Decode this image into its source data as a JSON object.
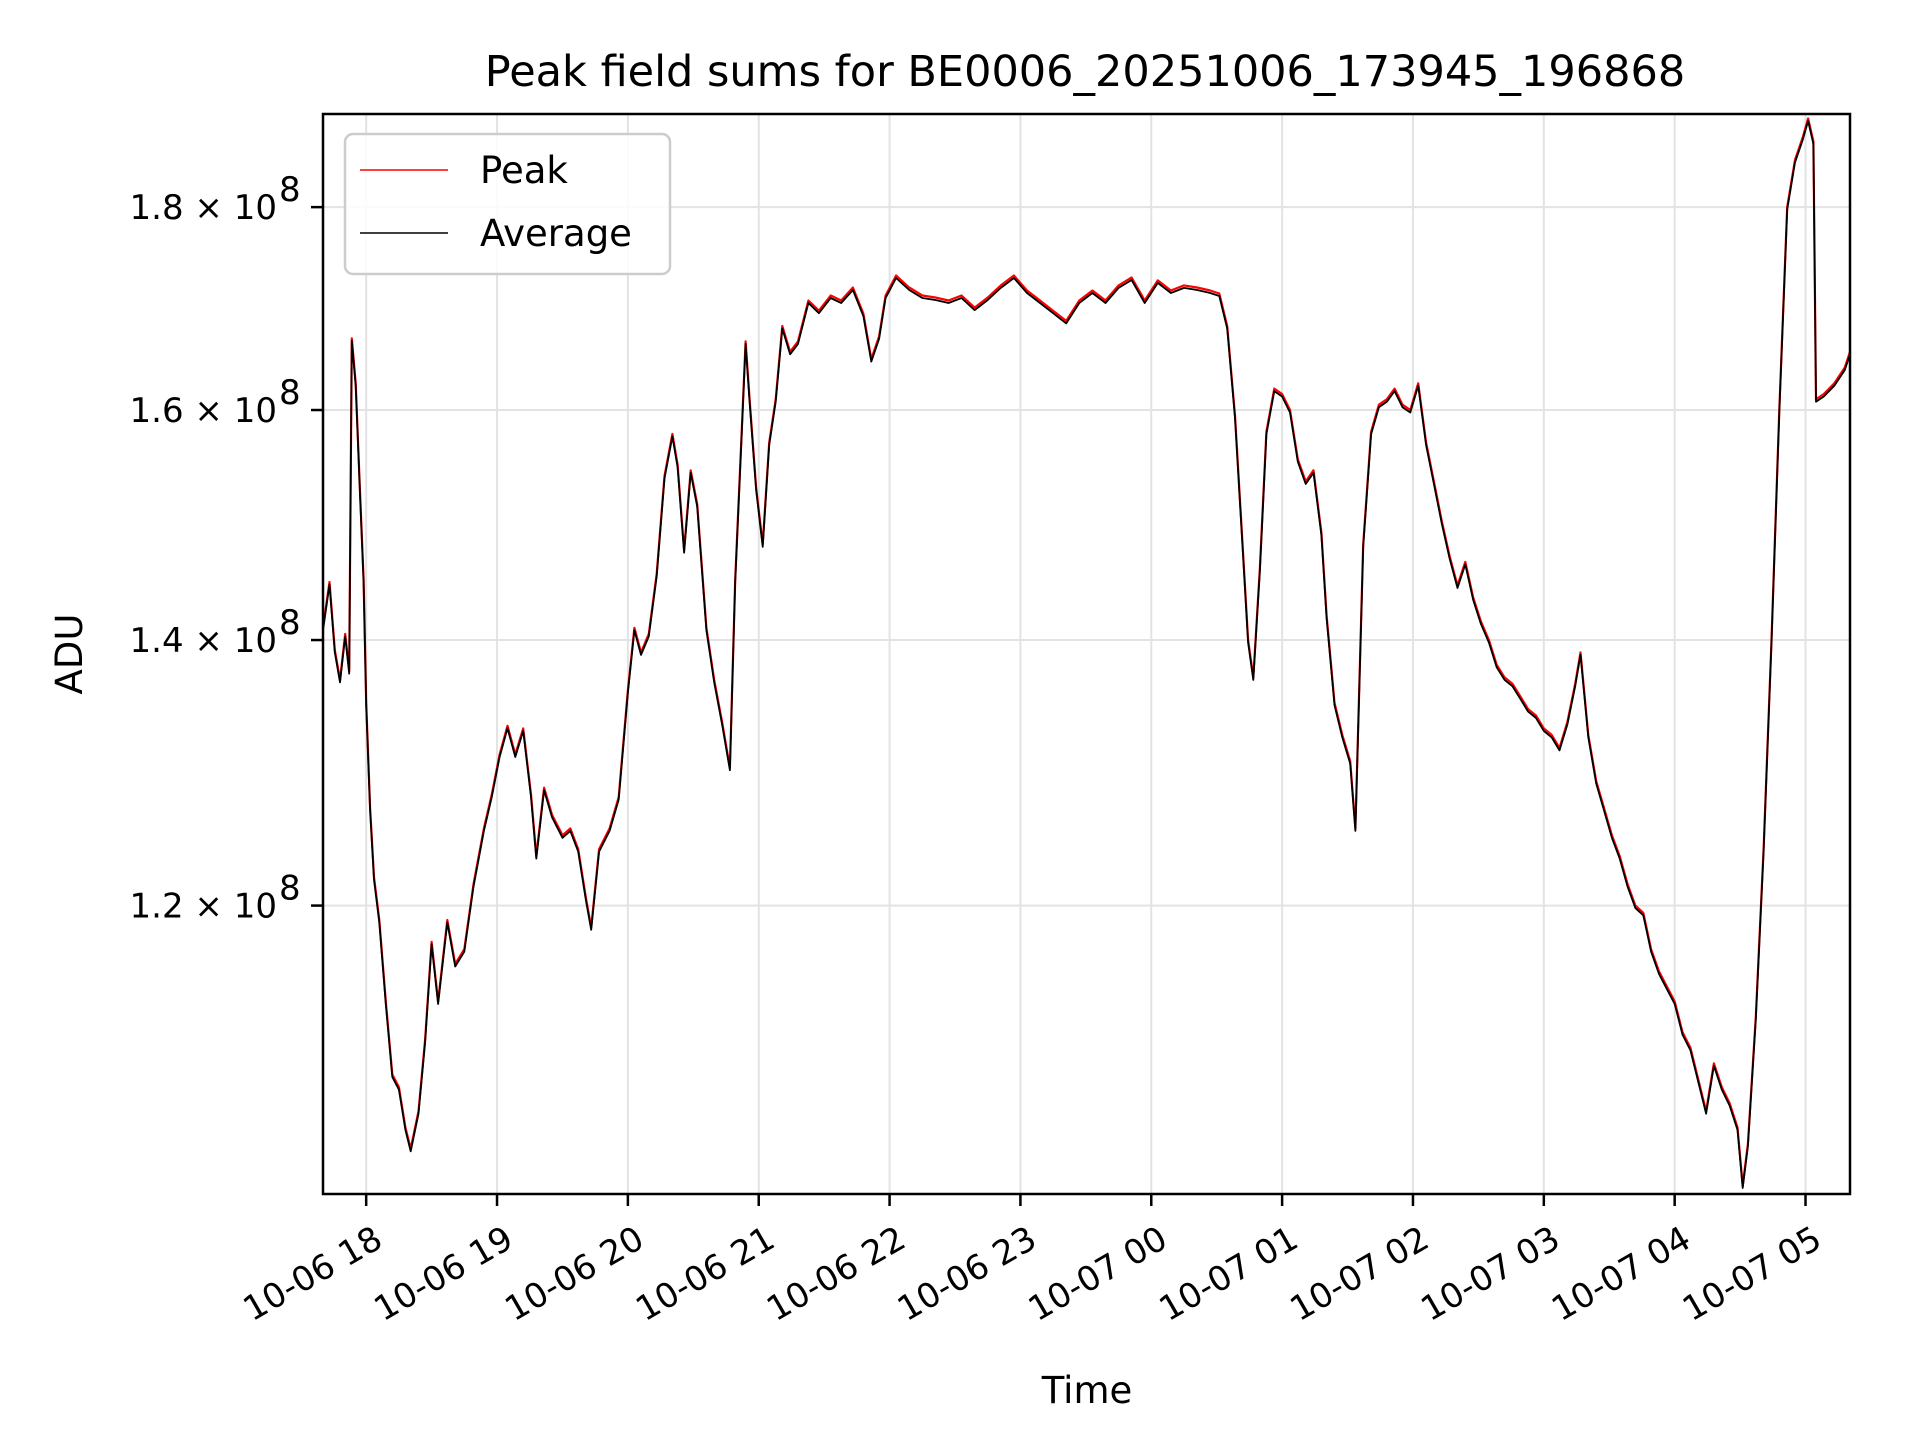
{
  "chart_data": {
    "type": "line",
    "title": "Peak field sums for BE0006_20251006_173945_196868",
    "xlabel": "Time",
    "ylabel": "ADU",
    "x_range_hours": [
      17.67,
      29.34
    ],
    "y_range": [
      101500000,
      190000000
    ],
    "y_scale": "log",
    "grid": true,
    "legend": "upper-left",
    "x_ticks": [
      {
        "hour": 18,
        "label": "10-06 18"
      },
      {
        "hour": 19,
        "label": "10-06 19"
      },
      {
        "hour": 20,
        "label": "10-06 20"
      },
      {
        "hour": 21,
        "label": "10-06 21"
      },
      {
        "hour": 22,
        "label": "10-06 22"
      },
      {
        "hour": 23,
        "label": "10-06 23"
      },
      {
        "hour": 24,
        "label": "10-07 00"
      },
      {
        "hour": 25,
        "label": "10-07 01"
      },
      {
        "hour": 26,
        "label": "10-07 02"
      },
      {
        "hour": 27,
        "label": "10-07 03"
      },
      {
        "hour": 28,
        "label": "10-07 04"
      },
      {
        "hour": 29,
        "label": "10-07 05"
      }
    ],
    "y_ticks": [
      {
        "value": 120000000,
        "label": "1.2 × 10",
        "exp": "8"
      },
      {
        "value": 140000000,
        "label": "1.4 × 10",
        "exp": "8"
      },
      {
        "value": 160000000,
        "label": "1.6 × 10",
        "exp": "8"
      },
      {
        "value": 180000000,
        "label": "1.8 × 10",
        "exp": "8"
      }
    ],
    "series": [
      {
        "name": "Peak",
        "color": "#ff0000",
        "points": [
          [
            17.67,
            141000000
          ],
          [
            17.72,
            144800000
          ],
          [
            17.76,
            139200000
          ],
          [
            17.8,
            136800000
          ],
          [
            17.84,
            140500000
          ],
          [
            17.87,
            137500000
          ],
          [
            17.89,
            166800000
          ],
          [
            17.92,
            162500000
          ],
          [
            17.95,
            153500000
          ],
          [
            17.98,
            145000000
          ],
          [
            18.0,
            135000000
          ],
          [
            18.03,
            127000000
          ],
          [
            18.06,
            122000000
          ],
          [
            18.1,
            119000000
          ],
          [
            18.15,
            113500000
          ],
          [
            18.2,
            108800000
          ],
          [
            18.25,
            108000000
          ],
          [
            18.3,
            105500000
          ],
          [
            18.34,
            104200000
          ],
          [
            18.4,
            106500000
          ],
          [
            18.45,
            111000000
          ],
          [
            18.5,
            117500000
          ],
          [
            18.55,
            113500000
          ],
          [
            18.62,
            119000000
          ],
          [
            18.68,
            116000000
          ],
          [
            18.75,
            117000000
          ],
          [
            18.82,
            121500000
          ],
          [
            18.9,
            125500000
          ],
          [
            18.96,
            128000000
          ],
          [
            19.02,
            131000000
          ],
          [
            19.08,
            133200000
          ],
          [
            19.14,
            131000000
          ],
          [
            19.2,
            133000000
          ],
          [
            19.26,
            128000000
          ],
          [
            19.3,
            123500000
          ],
          [
            19.36,
            128500000
          ],
          [
            19.42,
            126500000
          ],
          [
            19.5,
            125000000
          ],
          [
            19.56,
            125500000
          ],
          [
            19.62,
            124000000
          ],
          [
            19.68,
            120500000
          ],
          [
            19.72,
            118500000
          ],
          [
            19.78,
            124000000
          ],
          [
            19.86,
            125500000
          ],
          [
            19.93,
            127800000
          ],
          [
            20.0,
            136000000
          ],
          [
            20.05,
            141000000
          ],
          [
            20.1,
            139000000
          ],
          [
            20.16,
            140500000
          ],
          [
            20.22,
            145500000
          ],
          [
            20.28,
            154000000
          ],
          [
            20.34,
            157800000
          ],
          [
            20.38,
            155000000
          ],
          [
            20.43,
            147500000
          ],
          [
            20.48,
            154500000
          ],
          [
            20.53,
            151500000
          ],
          [
            20.6,
            141000000
          ],
          [
            20.66,
            136800000
          ],
          [
            20.72,
            133500000
          ],
          [
            20.78,
            130000000
          ],
          [
            20.82,
            145000000
          ],
          [
            20.87,
            158000000
          ],
          [
            20.9,
            166500000
          ],
          [
            20.93,
            161000000
          ],
          [
            20.98,
            153000000
          ],
          [
            21.03,
            148000000
          ],
          [
            21.08,
            157000000
          ],
          [
            21.13,
            161000000
          ],
          [
            21.18,
            168000000
          ],
          [
            21.24,
            165500000
          ],
          [
            21.3,
            166500000
          ],
          [
            21.38,
            170500000
          ],
          [
            21.46,
            169500000
          ],
          [
            21.55,
            171000000
          ],
          [
            21.63,
            170500000
          ],
          [
            21.72,
            171800000
          ],
          [
            21.8,
            169200000
          ],
          [
            21.86,
            164800000
          ],
          [
            21.92,
            167000000
          ],
          [
            21.97,
            171000000
          ],
          [
            22.05,
            173000000
          ],
          [
            22.15,
            171800000
          ],
          [
            22.25,
            171000000
          ],
          [
            22.35,
            170800000
          ],
          [
            22.45,
            170500000
          ],
          [
            22.55,
            171000000
          ],
          [
            22.65,
            169800000
          ],
          [
            22.75,
            170800000
          ],
          [
            22.85,
            172000000
          ],
          [
            22.95,
            173000000
          ],
          [
            23.05,
            171500000
          ],
          [
            23.15,
            170500000
          ],
          [
            23.25,
            169500000
          ],
          [
            23.35,
            168500000
          ],
          [
            23.45,
            170500000
          ],
          [
            23.55,
            171500000
          ],
          [
            23.65,
            170500000
          ],
          [
            23.75,
            172000000
          ],
          [
            23.85,
            172800000
          ],
          [
            23.95,
            170500000
          ],
          [
            24.05,
            172500000
          ],
          [
            24.15,
            171500000
          ],
          [
            24.25,
            172000000
          ],
          [
            24.35,
            171800000
          ],
          [
            24.45,
            171500000
          ],
          [
            24.52,
            171200000
          ],
          [
            24.58,
            168000000
          ],
          [
            24.64,
            159500000
          ],
          [
            24.7,
            147500000
          ],
          [
            24.74,
            140000000
          ],
          [
            24.78,
            137000000
          ],
          [
            24.83,
            146000000
          ],
          [
            24.88,
            158000000
          ],
          [
            24.94,
            162000000
          ],
          [
            25.0,
            161500000
          ],
          [
            25.06,
            160000000
          ],
          [
            25.12,
            155500000
          ],
          [
            25.18,
            153500000
          ],
          [
            25.24,
            154500000
          ],
          [
            25.3,
            149000000
          ],
          [
            25.34,
            142000000
          ],
          [
            25.4,
            135000000
          ],
          [
            25.46,
            132500000
          ],
          [
            25.52,
            130500000
          ],
          [
            25.56,
            125500000
          ],
          [
            25.62,
            148000000
          ],
          [
            25.68,
            158000000
          ],
          [
            25.74,
            160500000
          ],
          [
            25.8,
            161000000
          ],
          [
            25.86,
            162000000
          ],
          [
            25.92,
            160500000
          ],
          [
            25.98,
            160000000
          ],
          [
            26.04,
            162500000
          ],
          [
            26.1,
            157000000
          ],
          [
            26.16,
            153500000
          ],
          [
            26.22,
            150000000
          ],
          [
            26.28,
            147000000
          ],
          [
            26.34,
            144500000
          ],
          [
            26.4,
            146500000
          ],
          [
            26.46,
            143500000
          ],
          [
            26.52,
            141500000
          ],
          [
            26.58,
            140000000
          ],
          [
            26.64,
            138000000
          ],
          [
            26.7,
            137000000
          ],
          [
            26.76,
            136500000
          ],
          [
            26.82,
            135500000
          ],
          [
            26.88,
            134500000
          ],
          [
            26.94,
            134000000
          ],
          [
            27.0,
            133000000
          ],
          [
            27.06,
            132500000
          ],
          [
            27.12,
            131500000
          ],
          [
            27.18,
            133500000
          ],
          [
            27.24,
            136500000
          ],
          [
            27.28,
            139000000
          ],
          [
            27.34,
            132500000
          ],
          [
            27.4,
            129000000
          ],
          [
            27.46,
            127000000
          ],
          [
            27.52,
            125000000
          ],
          [
            27.58,
            123500000
          ],
          [
            27.64,
            121500000
          ],
          [
            27.7,
            120000000
          ],
          [
            27.76,
            119500000
          ],
          [
            27.82,
            117000000
          ],
          [
            27.88,
            115500000
          ],
          [
            27.94,
            114500000
          ],
          [
            28.0,
            113500000
          ],
          [
            28.06,
            111500000
          ],
          [
            28.12,
            110500000
          ],
          [
            28.18,
            108500000
          ],
          [
            28.24,
            106500000
          ],
          [
            28.3,
            109500000
          ],
          [
            28.36,
            108000000
          ],
          [
            28.42,
            107000000
          ],
          [
            28.48,
            105500000
          ],
          [
            28.52,
            102000000
          ],
          [
            28.56,
            104500000
          ],
          [
            28.62,
            112500000
          ],
          [
            28.68,
            124000000
          ],
          [
            28.74,
            140000000
          ],
          [
            28.8,
            160000000
          ],
          [
            28.86,
            180000000
          ],
          [
            28.92,
            185000000
          ],
          [
            28.98,
            187500000
          ],
          [
            29.02,
            189500000
          ],
          [
            29.06,
            187000000
          ],
          [
            29.08,
            161000000
          ],
          [
            29.14,
            161500000
          ],
          [
            29.22,
            162500000
          ],
          [
            29.3,
            164000000
          ],
          [
            29.34,
            165500000
          ]
        ]
      },
      {
        "name": "Average",
        "color": "#000000"
      }
    ]
  }
}
